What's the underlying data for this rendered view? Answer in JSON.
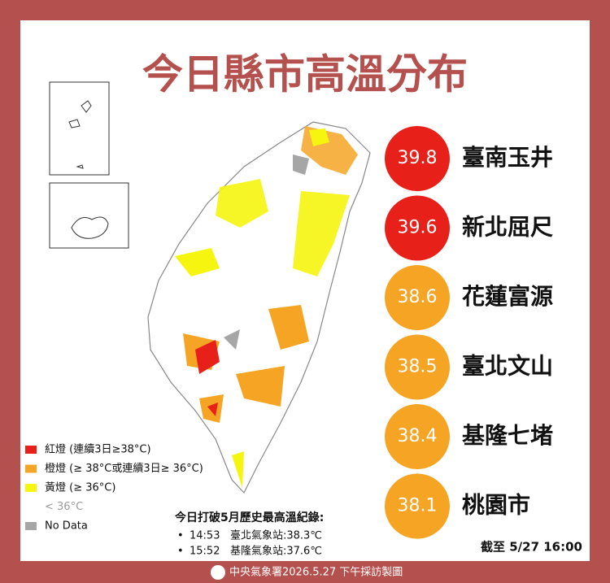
{
  "title": "今日縣市高溫分布",
  "rankings": [
    {
      "value": 39.8,
      "place": "臺南玉井",
      "color": "#e8201a"
    },
    {
      "value": 39.6,
      "place": "新北屈尺",
      "color": "#e8201a"
    },
    {
      "value": 38.6,
      "place": "花蓮富源",
      "color": "#f5a424"
    },
    {
      "value": 38.5,
      "place": "臺北文山",
      "color": "#f5a424"
    },
    {
      "value": 38.4,
      "place": "基隆七堵",
      "color": "#f5a424"
    },
    {
      "value": 38.1,
      "place": "桃園市",
      "color": "#f5a424"
    }
  ],
  "legend": [
    {
      "label": "紅燈 (連續3日≥38°C)",
      "color": "#e8201a"
    },
    {
      "label": "橙燈 (≥ 38°C或連續3日≥ 36°C)",
      "color": "#f5a424"
    },
    {
      "label": "黃燈 (≥ 36°C)",
      "color": "#f5f50f"
    },
    {
      "label": "< 36°C",
      "color": null
    },
    {
      "label": "No Data",
      "color": "#a6a6a6"
    }
  ],
  "records": {
    "heading": "今日打破5月歷史最高溫紀錄:",
    "items": [
      {
        "bullet": "•",
        "time": "14:53",
        "text": "臺北氣象站:38.3℃"
      },
      {
        "bullet": "•",
        "time": "15:52",
        "text": "基隆氣象站:37.6℃"
      }
    ]
  },
  "timestamp": "截至 5/27 16:00",
  "footer": "中央氣象署2026.5.27 下午採訪製圖"
}
